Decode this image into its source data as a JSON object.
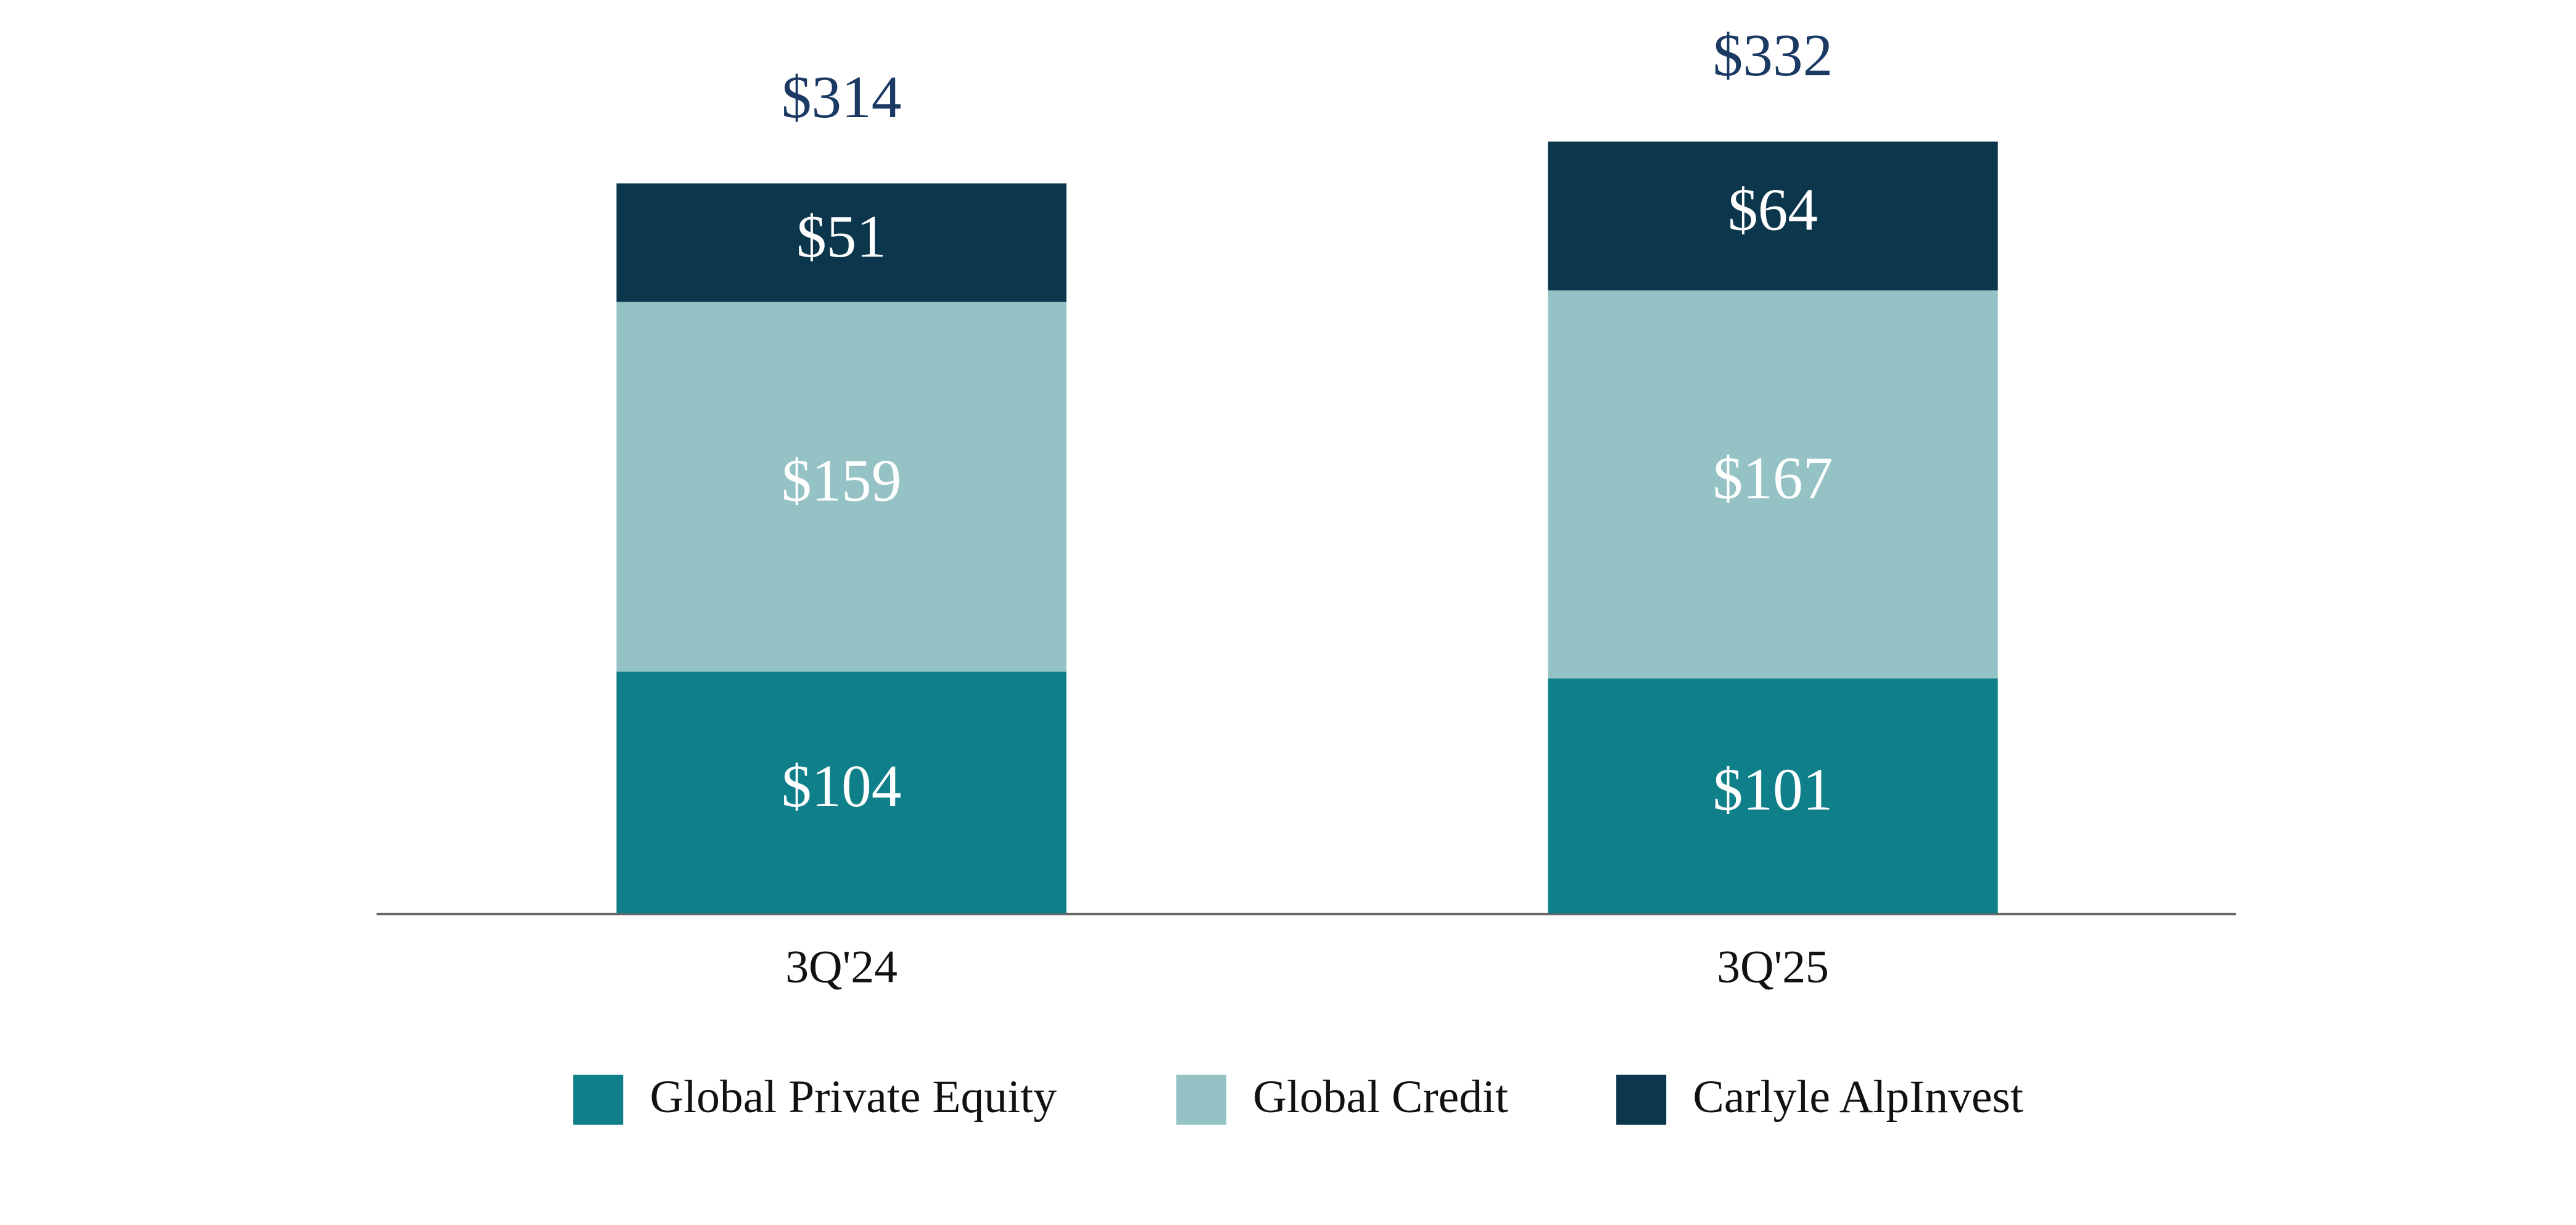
{
  "chart_data": {
    "type": "stacked_bar",
    "categories": [
      "3Q'24",
      "3Q'25"
    ],
    "series": [
      {
        "name": "Global Private Equity",
        "color": "#0f7f8a",
        "values": [
          104,
          101
        ],
        "value_labels": [
          "$104",
          "$101"
        ]
      },
      {
        "name": "Global Credit",
        "color": "#95c3c5",
        "values": [
          159,
          167
        ],
        "value_labels": [
          "$159",
          "$167"
        ]
      },
      {
        "name": "Carlyle AlpInvest",
        "color": "#0b364b",
        "values": [
          51,
          64
        ],
        "value_labels": [
          "$51",
          "$64"
        ]
      }
    ],
    "totals": [
      314,
      332
    ],
    "total_labels": [
      "$314",
      "$332"
    ],
    "total_color": "#1b3a63",
    "legend": "bottom"
  }
}
